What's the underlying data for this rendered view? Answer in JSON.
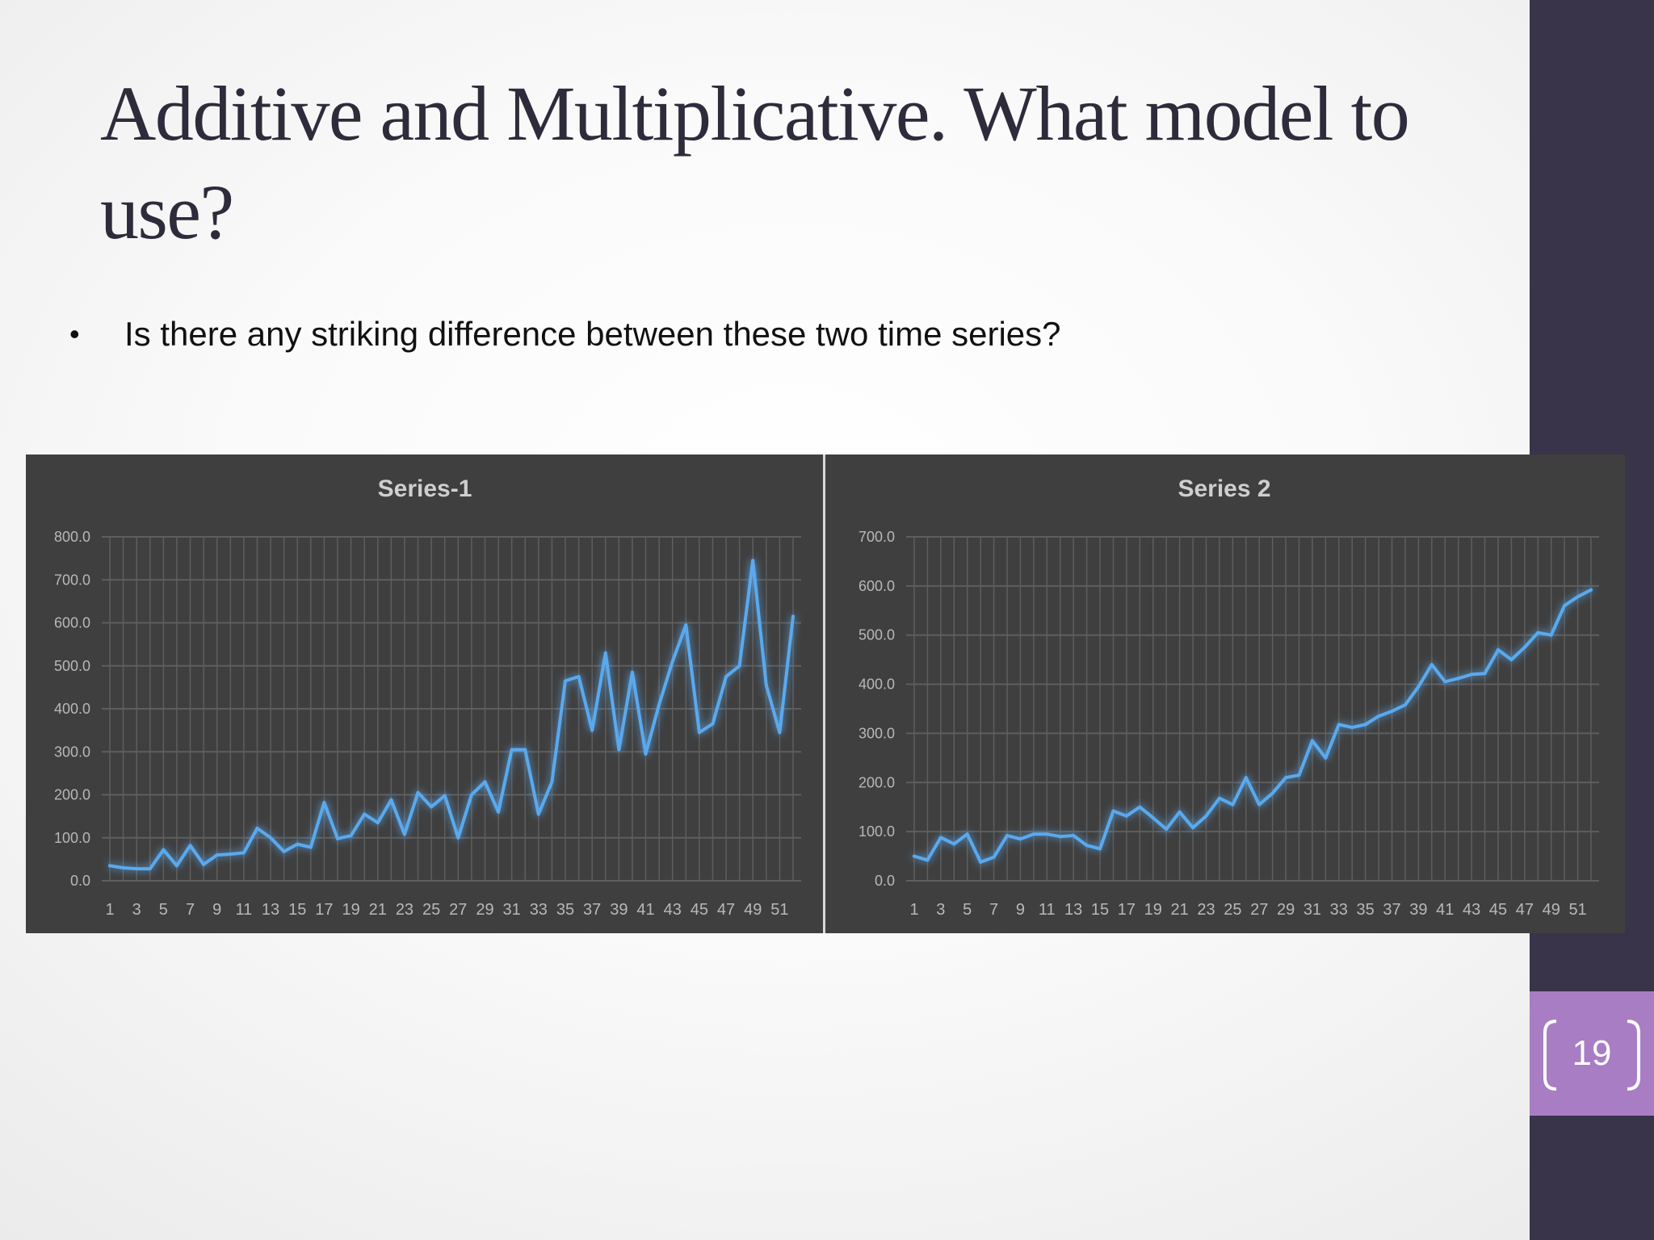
{
  "slide": {
    "title": "Additive and Multiplicative. What model to use?",
    "bullet": "Is there any striking difference between these two time series?",
    "page_number": "19"
  },
  "chart_data": [
    {
      "type": "line",
      "title": "Series-1",
      "xlabel": "",
      "ylabel": "",
      "x": [
        1,
        2,
        3,
        4,
        5,
        6,
        7,
        8,
        9,
        10,
        11,
        12,
        13,
        14,
        15,
        16,
        17,
        18,
        19,
        20,
        21,
        22,
        23,
        24,
        25,
        26,
        27,
        28,
        29,
        30,
        31,
        32,
        33,
        34,
        35,
        36,
        37,
        38,
        39,
        40,
        41,
        42,
        43,
        44,
        45,
        46,
        47,
        48,
        49,
        50,
        51,
        52
      ],
      "x_tick_labels": [
        "1",
        "3",
        "5",
        "7",
        "9",
        "11",
        "13",
        "15",
        "17",
        "19",
        "21",
        "23",
        "25",
        "27",
        "29",
        "31",
        "33",
        "35",
        "37",
        "39",
        "41",
        "43",
        "45",
        "47",
        "49",
        "51"
      ],
      "y_tick_labels": [
        "0.0",
        "100.0",
        "200.0",
        "300.0",
        "400.0",
        "500.0",
        "600.0",
        "700.0",
        "800.0"
      ],
      "ylim": [
        0,
        800
      ],
      "grid": true,
      "series": [
        {
          "values": [
            35,
            30,
            28,
            28,
            72,
            35,
            82,
            38,
            60,
            62,
            65,
            122,
            100,
            68,
            85,
            78,
            182,
            98,
            105,
            155,
            135,
            188,
            108,
            205,
            172,
            198,
            100,
            200,
            230,
            160,
            305,
            305,
            155,
            230,
            465,
            475,
            350,
            530,
            305,
            485,
            295,
            410,
            510,
            595,
            345,
            365,
            475,
            500,
            745,
            455,
            345,
            615
          ]
        }
      ],
      "colors": {
        "line": "#5aa9ee",
        "background": "#3f3f3f",
        "grid": "#5e5e5e",
        "text": "#cfcfcf"
      }
    },
    {
      "type": "line",
      "title": "Series 2",
      "xlabel": "",
      "ylabel": "",
      "x": [
        1,
        2,
        3,
        4,
        5,
        6,
        7,
        8,
        9,
        10,
        11,
        12,
        13,
        14,
        15,
        16,
        17,
        18,
        19,
        20,
        21,
        22,
        23,
        24,
        25,
        26,
        27,
        28,
        29,
        30,
        31,
        32,
        33,
        34,
        35,
        36,
        37,
        38,
        39,
        40,
        41,
        42,
        43,
        44,
        45,
        46,
        47,
        48,
        49,
        50,
        51,
        52
      ],
      "x_tick_labels": [
        "1",
        "3",
        "5",
        "7",
        "9",
        "11",
        "13",
        "15",
        "17",
        "19",
        "21",
        "23",
        "25",
        "27",
        "29",
        "31",
        "33",
        "35",
        "37",
        "39",
        "41",
        "43",
        "45",
        "47",
        "49",
        "51"
      ],
      "y_tick_labels": [
        "0.0",
        "100.0",
        "200.0",
        "300.0",
        "400.0",
        "500.0",
        "600.0",
        "700.0"
      ],
      "ylim": [
        0,
        700
      ],
      "grid": true,
      "series": [
        {
          "values": [
            50,
            42,
            88,
            75,
            95,
            38,
            48,
            92,
            85,
            95,
            95,
            90,
            92,
            72,
            65,
            142,
            132,
            150,
            128,
            105,
            140,
            108,
            132,
            168,
            155,
            210,
            155,
            178,
            210,
            215,
            285,
            250,
            318,
            312,
            318,
            335,
            345,
            358,
            395,
            440,
            405,
            412,
            420,
            422,
            470,
            450,
            475,
            505,
            500,
            560,
            578,
            592
          ]
        }
      ],
      "colors": {
        "line": "#5aa9ee",
        "background": "#3f3f3f",
        "grid": "#5e5e5e",
        "text": "#cfcfcf"
      }
    }
  ]
}
